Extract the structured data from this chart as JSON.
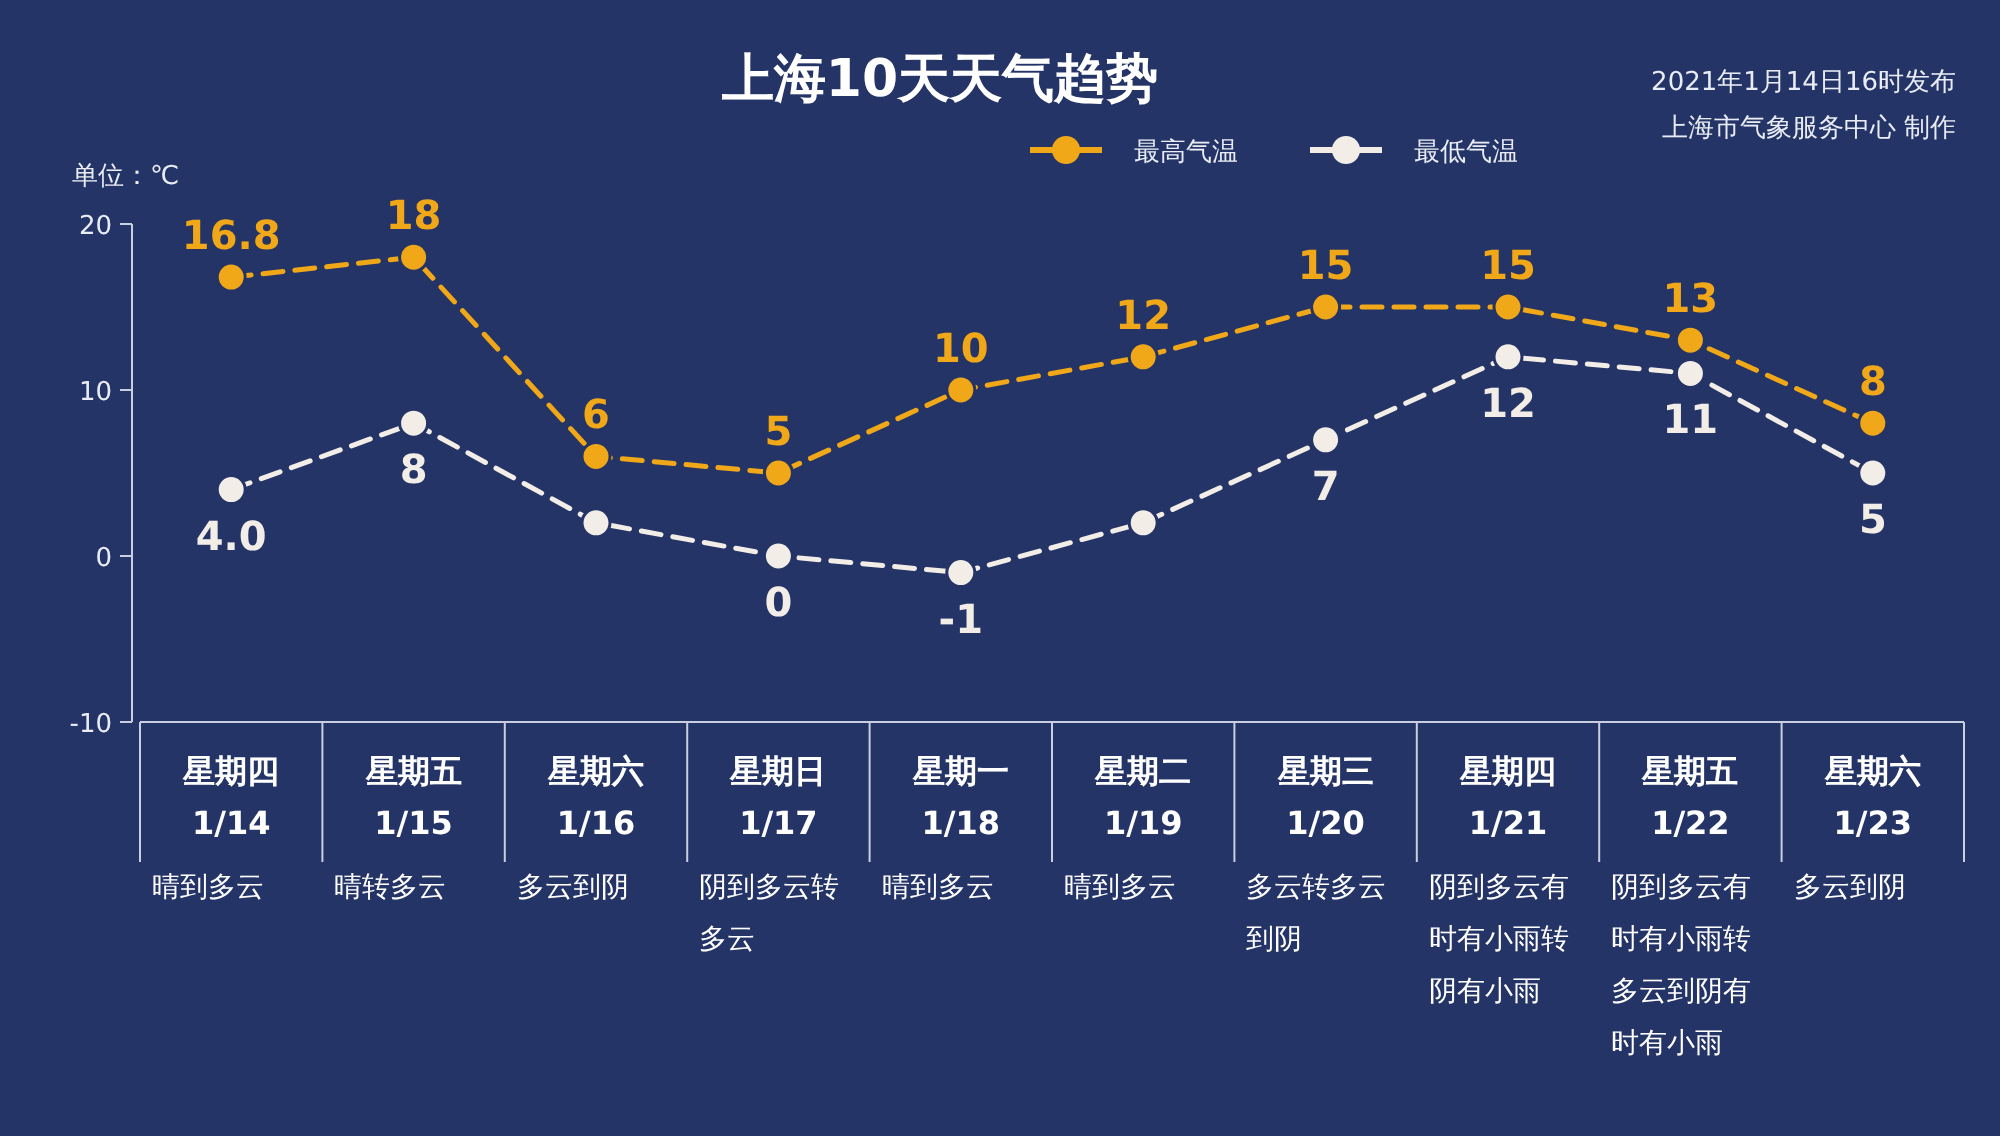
{
  "chart_data": {
    "type": "line",
    "title": "上海10天天气趋势",
    "subtitle": "2021年1月14日16时发布",
    "annotations": [
      "上海市气象服务中心 制作"
    ],
    "ylabel": "单位：℃",
    "categories": [
      "星期四\n1/14\n晴到多云",
      "星期五\n1/15\n晴转多云",
      "星期六\n1/16\n多云到阴",
      "星期日\n1/17\n阴到多云转多云",
      "星期一\n1/18\n晴到多云",
      "星期二\n1/19\n晴到多云",
      "星期三\n1/20\n多云转多云到阴",
      "星期四\n1/21\n阴到多云有时有小雨转阴有小雨",
      "星期五\n1/22\n阴到多云有时有小雨转多云到阴有时有小雨",
      "星期六\n1/23\n多云到阴"
    ],
    "series": [
      {
        "name": "最高气温",
        "color": "#f0a818",
        "values": [
          16.8,
          18,
          6,
          5,
          10,
          12,
          15,
          15,
          13,
          8
        ],
        "value_labels": [
          "16.8",
          "18",
          "6",
          "5",
          "10",
          "12",
          "15",
          "15",
          "13",
          "8"
        ]
      },
      {
        "name": "最低气温",
        "color": "#f2ede6",
        "values": [
          4,
          8,
          2,
          0,
          -1,
          2,
          7,
          12,
          11,
          5
        ],
        "value_labels": [
          "4.0",
          "8",
          null,
          "0",
          "-1",
          null,
          "7",
          "12",
          "11",
          "5"
        ]
      }
    ],
    "ylim": [
      -10,
      20
    ],
    "yticks": [
      -10,
      0,
      10,
      20
    ],
    "marker": "circle",
    "line_style": "dashed",
    "legend": "top right",
    "grid": false
  }
}
